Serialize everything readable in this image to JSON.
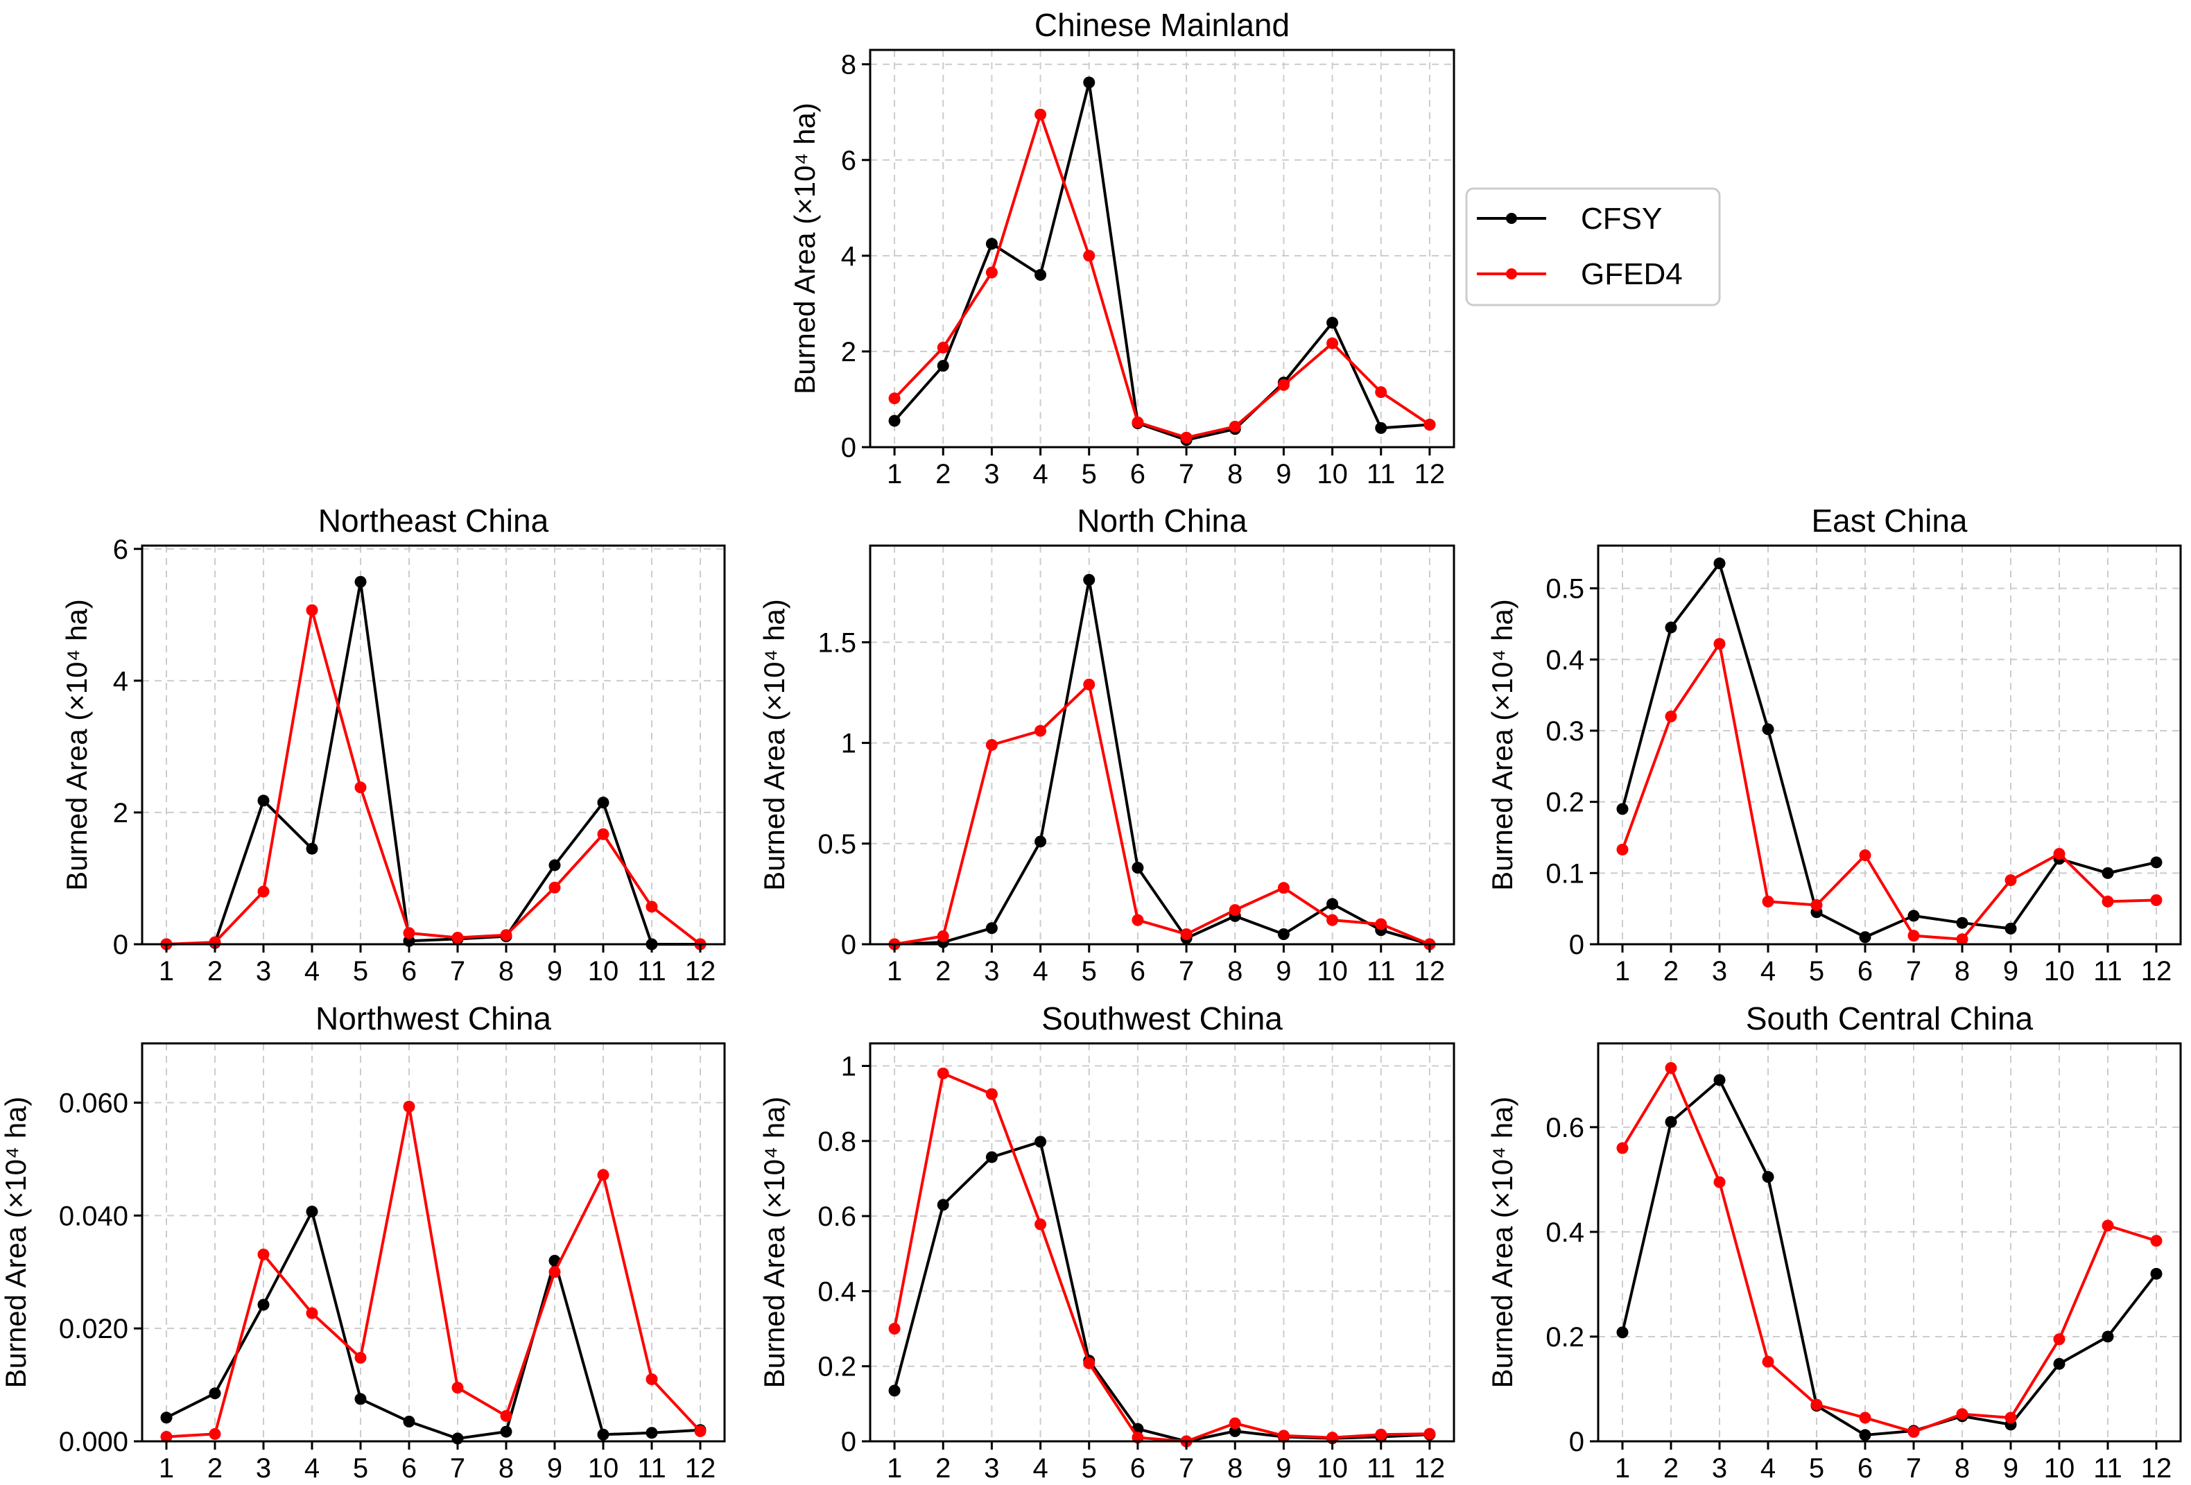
{
  "series_styles": [
    {
      "name": "CFSY",
      "color": "#000000"
    },
    {
      "name": "GFED4",
      "color": "#ff0000"
    }
  ],
  "legend": {
    "placement": "right of top panel",
    "entries": [
      "CFSY",
      "GFED4"
    ]
  },
  "chart_data": [
    {
      "id": "chinese-mainland",
      "type": "line",
      "title": "Chinese Mainland",
      "xlabel": "",
      "ylabel": "Burned Area (×10⁴ ha)",
      "x": [
        1,
        2,
        3,
        4,
        5,
        6,
        7,
        8,
        9,
        10,
        11,
        12
      ],
      "xticks": [
        "1",
        "2",
        "3",
        "4",
        "5",
        "6",
        "7",
        "8",
        "9",
        "10",
        "11",
        "12"
      ],
      "ylim": [
        0,
        8.3
      ],
      "yticks": [
        0,
        2,
        4,
        6,
        8
      ],
      "yticklabels": [
        "0",
        "2",
        "4",
        "6",
        "8"
      ],
      "grid": true,
      "series": [
        {
          "name": "CFSY",
          "values": [
            0.55,
            1.7,
            4.25,
            3.6,
            7.62,
            0.5,
            0.15,
            0.38,
            1.35,
            2.6,
            0.4,
            0.47
          ]
        },
        {
          "name": "GFED4",
          "values": [
            1.02,
            2.08,
            3.65,
            6.95,
            4.0,
            0.52,
            0.2,
            0.43,
            1.3,
            2.17,
            1.15,
            0.47
          ]
        }
      ]
    },
    {
      "id": "northeast-china",
      "type": "line",
      "title": "Northeast China",
      "xlabel": "",
      "ylabel": "Burned Area (×10⁴ ha)",
      "x": [
        1,
        2,
        3,
        4,
        5,
        6,
        7,
        8,
        9,
        10,
        11,
        12
      ],
      "xticks": [
        "1",
        "2",
        "3",
        "4",
        "5",
        "6",
        "7",
        "8",
        "9",
        "10",
        "11",
        "12"
      ],
      "ylim": [
        0,
        6.05
      ],
      "yticks": [
        0,
        2,
        4,
        6
      ],
      "yticklabels": [
        "0",
        "2",
        "4",
        "6"
      ],
      "grid": true,
      "series": [
        {
          "name": "CFSY",
          "values": [
            0.0,
            0.02,
            2.18,
            1.45,
            5.5,
            0.05,
            0.08,
            0.12,
            1.2,
            2.15,
            0.0,
            0.0
          ]
        },
        {
          "name": "GFED4",
          "values": [
            0.0,
            0.03,
            0.8,
            5.07,
            2.38,
            0.17,
            0.1,
            0.14,
            0.86,
            1.67,
            0.57,
            0.0
          ]
        }
      ]
    },
    {
      "id": "north-china",
      "type": "line",
      "title": "North China",
      "xlabel": "",
      "ylabel": "Burned Area (×10⁴ ha)",
      "x": [
        1,
        2,
        3,
        4,
        5,
        6,
        7,
        8,
        9,
        10,
        11,
        12
      ],
      "xticks": [
        "1",
        "2",
        "3",
        "4",
        "5",
        "6",
        "7",
        "8",
        "9",
        "10",
        "11",
        "12"
      ],
      "ylim": [
        0,
        1.98
      ],
      "yticks": [
        0,
        0.5,
        1,
        1.5
      ],
      "yticklabels": [
        "0",
        "0.5",
        "1",
        "1.5"
      ],
      "grid": true,
      "series": [
        {
          "name": "CFSY",
          "values": [
            0.0,
            0.01,
            0.08,
            0.51,
            1.81,
            0.38,
            0.03,
            0.14,
            0.05,
            0.2,
            0.07,
            0.0
          ]
        },
        {
          "name": "GFED4",
          "values": [
            0.0,
            0.04,
            0.99,
            1.06,
            1.29,
            0.12,
            0.05,
            0.17,
            0.28,
            0.12,
            0.1,
            0.0
          ]
        }
      ]
    },
    {
      "id": "east-china",
      "type": "line",
      "title": "East China",
      "xlabel": "",
      "ylabel": "Burned Area (×10⁴ ha)",
      "x": [
        1,
        2,
        3,
        4,
        5,
        6,
        7,
        8,
        9,
        10,
        11,
        12
      ],
      "xticks": [
        "1",
        "2",
        "3",
        "4",
        "5",
        "6",
        "7",
        "8",
        "9",
        "10",
        "11",
        "12"
      ],
      "ylim": [
        0,
        0.56
      ],
      "yticks": [
        0,
        0.1,
        0.2,
        0.3,
        0.4,
        0.5
      ],
      "yticklabels": [
        "0",
        "0.1",
        "0.2",
        "0.3",
        "0.4",
        "0.5"
      ],
      "grid": true,
      "series": [
        {
          "name": "CFSY",
          "values": [
            0.19,
            0.445,
            0.535,
            0.302,
            0.045,
            0.01,
            0.04,
            0.03,
            0.022,
            0.12,
            0.1,
            0.115
          ]
        },
        {
          "name": "GFED4",
          "values": [
            0.133,
            0.32,
            0.422,
            0.06,
            0.055,
            0.125,
            0.012,
            0.007,
            0.09,
            0.127,
            0.06,
            0.062
          ]
        }
      ]
    },
    {
      "id": "northwest-china",
      "type": "line",
      "title": "Northwest China",
      "xlabel": "",
      "ylabel": "Burned Area (×10⁴ ha)",
      "x": [
        1,
        2,
        3,
        4,
        5,
        6,
        7,
        8,
        9,
        10,
        11,
        12
      ],
      "xticks": [
        "1",
        "2",
        "3",
        "4",
        "5",
        "6",
        "7",
        "8",
        "9",
        "10",
        "11",
        "12"
      ],
      "ylim": [
        0,
        0.0705
      ],
      "yticks": [
        0,
        0.02,
        0.04,
        0.06
      ],
      "yticklabels": [
        "0.000",
        "0.020",
        "0.040",
        "0.060"
      ],
      "grid": true,
      "series": [
        {
          "name": "CFSY",
          "values": [
            0.0042,
            0.0085,
            0.0242,
            0.0407,
            0.0075,
            0.0035,
            0.0005,
            0.0017,
            0.032,
            0.0012,
            0.0015,
            0.002
          ]
        },
        {
          "name": "GFED4",
          "values": [
            0.0008,
            0.0013,
            0.0331,
            0.0227,
            0.0148,
            0.0593,
            0.0095,
            0.0045,
            0.03,
            0.0472,
            0.011,
            0.0018
          ]
        }
      ]
    },
    {
      "id": "southwest-china",
      "type": "line",
      "title": "Southwest China",
      "xlabel": "",
      "ylabel": "Burned Area (×10⁴ ha)",
      "x": [
        1,
        2,
        3,
        4,
        5,
        6,
        7,
        8,
        9,
        10,
        11,
        12
      ],
      "xticks": [
        "1",
        "2",
        "3",
        "4",
        "5",
        "6",
        "7",
        "8",
        "9",
        "10",
        "11",
        "12"
      ],
      "ylim": [
        0,
        1.06
      ],
      "yticks": [
        0,
        0.2,
        0.4,
        0.6,
        0.8,
        1
      ],
      "yticklabels": [
        "0",
        "0.2",
        "0.4",
        "0.6",
        "0.8",
        "1"
      ],
      "grid": true,
      "series": [
        {
          "name": "CFSY",
          "values": [
            0.135,
            0.63,
            0.757,
            0.798,
            0.215,
            0.033,
            0.0,
            0.027,
            0.012,
            0.008,
            0.012,
            0.018
          ]
        },
        {
          "name": "GFED4",
          "values": [
            0.3,
            0.98,
            0.925,
            0.578,
            0.208,
            0.01,
            0.0,
            0.048,
            0.015,
            0.01,
            0.018,
            0.02
          ]
        }
      ]
    },
    {
      "id": "south-central-china",
      "type": "line",
      "title": "South Central China",
      "xlabel": "",
      "ylabel": "Burned Area (×10⁴ ha)",
      "x": [
        1,
        2,
        3,
        4,
        5,
        6,
        7,
        8,
        9,
        10,
        11,
        12
      ],
      "xticks": [
        "1",
        "2",
        "3",
        "4",
        "5",
        "6",
        "7",
        "8",
        "9",
        "10",
        "11",
        "12"
      ],
      "ylim": [
        0,
        0.76
      ],
      "yticks": [
        0,
        0.2,
        0.4,
        0.6
      ],
      "yticklabels": [
        "0",
        "0.2",
        "0.4",
        "0.6"
      ],
      "grid": true,
      "series": [
        {
          "name": "CFSY",
          "values": [
            0.208,
            0.61,
            0.69,
            0.505,
            0.068,
            0.012,
            0.02,
            0.048,
            0.032,
            0.148,
            0.2,
            0.32
          ]
        },
        {
          "name": "GFED4",
          "values": [
            0.56,
            0.713,
            0.495,
            0.152,
            0.07,
            0.045,
            0.018,
            0.052,
            0.045,
            0.195,
            0.412,
            0.383
          ]
        }
      ]
    }
  ]
}
